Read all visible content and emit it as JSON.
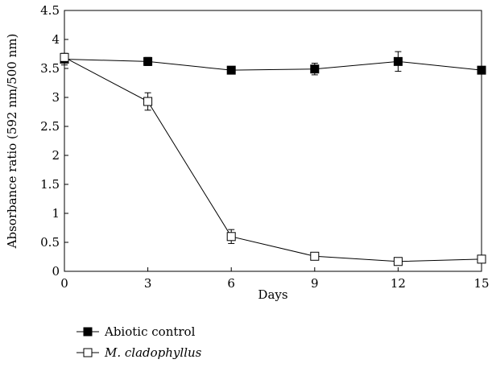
{
  "chart_data": {
    "type": "line",
    "title": "",
    "xlabel": "Days",
    "ylabel": "Absorbance ratio (592 nm/500 nm)",
    "xlim": [
      0,
      15
    ],
    "ylim": [
      0,
      4.5
    ],
    "x_ticks": [
      0,
      3,
      6,
      9,
      12,
      15
    ],
    "y_ticks": [
      0,
      0.5,
      1,
      1.5,
      2,
      2.5,
      3,
      3.5,
      4,
      4.5
    ],
    "x_tick_labels": [
      "0",
      "3",
      "6",
      "9",
      "12",
      "15"
    ],
    "y_tick_labels": [
      "0",
      "0.5",
      "1",
      "1.5",
      "2",
      "2.5",
      "3",
      "3.5",
      "4",
      "4.5"
    ],
    "grid": false,
    "legend_position": "bottom-left",
    "x": [
      0,
      3,
      6,
      9,
      12,
      15
    ],
    "series": [
      {
        "name": "Abiotic control",
        "marker": "filled-square",
        "name_italic": false,
        "values": [
          3.66,
          3.62,
          3.47,
          3.49,
          3.62,
          3.47
        ],
        "errors": [
          0.1,
          0.07,
          0.04,
          0.1,
          0.17,
          0.04
        ]
      },
      {
        "name": "M. cladophyllus",
        "marker": "open-square",
        "name_italic": true,
        "values": [
          3.69,
          2.93,
          0.6,
          0.26,
          0.17,
          0.21
        ],
        "errors": [
          0.05,
          0.15,
          0.12,
          0.04,
          0.04,
          0.04
        ]
      }
    ]
  }
}
